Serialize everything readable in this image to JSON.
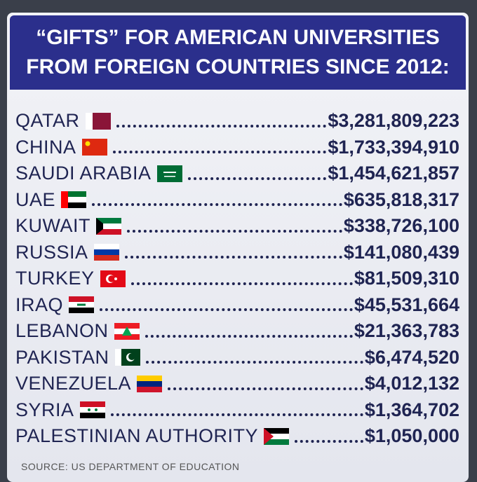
{
  "header": {
    "title_lines": [
      "“GIFTS” FOR AMERICAN UNIVERSITIES",
      "FROM FOREIGN COUNTRIES SINCE 2012:"
    ]
  },
  "rows": [
    {
      "country": "QATAR",
      "amount": "$3,281,809,223"
    },
    {
      "country": "CHINA",
      "amount": "$1,733,394,910"
    },
    {
      "country": "SAUDI ARABIA",
      "amount": "$1,454,621,857"
    },
    {
      "country": "UAE",
      "amount": "$635,818,317"
    },
    {
      "country": "KUWAIT",
      "amount": "$338,726,100"
    },
    {
      "country": "RUSSIA",
      "amount": "$141,080,439"
    },
    {
      "country": "TURKEY",
      "amount": "$81,509,310"
    },
    {
      "country": "IRAQ",
      "amount": "$45,531,664"
    },
    {
      "country": "LEBANON",
      "amount": "$21,363,783"
    },
    {
      "country": "PAKISTAN",
      "amount": "$6,474,520"
    },
    {
      "country": "VENEZUELA",
      "amount": "$4,012,132"
    },
    {
      "country": "SYRIA",
      "amount": "$1,364,702"
    },
    {
      "country": "PALESTINIAN AUTHORITY",
      "amount": "$1,050,000"
    }
  ],
  "source": "SOURCE: US DEPARTMENT OF EDUCATION"
}
